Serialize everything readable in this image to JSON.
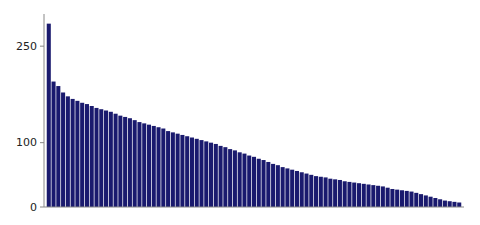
{
  "chart_data": {
    "type": "bar",
    "color": "#1a1a6e",
    "values": [
      285,
      195,
      188,
      178,
      172,
      168,
      165,
      162,
      160,
      157,
      154,
      152,
      150,
      148,
      145,
      142,
      140,
      138,
      135,
      132,
      130,
      128,
      126,
      124,
      122,
      118,
      116,
      114,
      112,
      110,
      108,
      106,
      104,
      102,
      100,
      98,
      95,
      93,
      90,
      88,
      85,
      83,
      80,
      78,
      75,
      73,
      70,
      67,
      65,
      62,
      60,
      58,
      56,
      54,
      52,
      50,
      48,
      47,
      46,
      44,
      43,
      42,
      40,
      39,
      38,
      37,
      36,
      35,
      34,
      33,
      32,
      30,
      28,
      27,
      26,
      25,
      24,
      22,
      20,
      18,
      16,
      14,
      12,
      10,
      9,
      8,
      7
    ],
    "ylim": [
      0,
      300
    ],
    "yticks": [
      0,
      100,
      250
    ],
    "grid": false,
    "tick_labels": "y"
  }
}
